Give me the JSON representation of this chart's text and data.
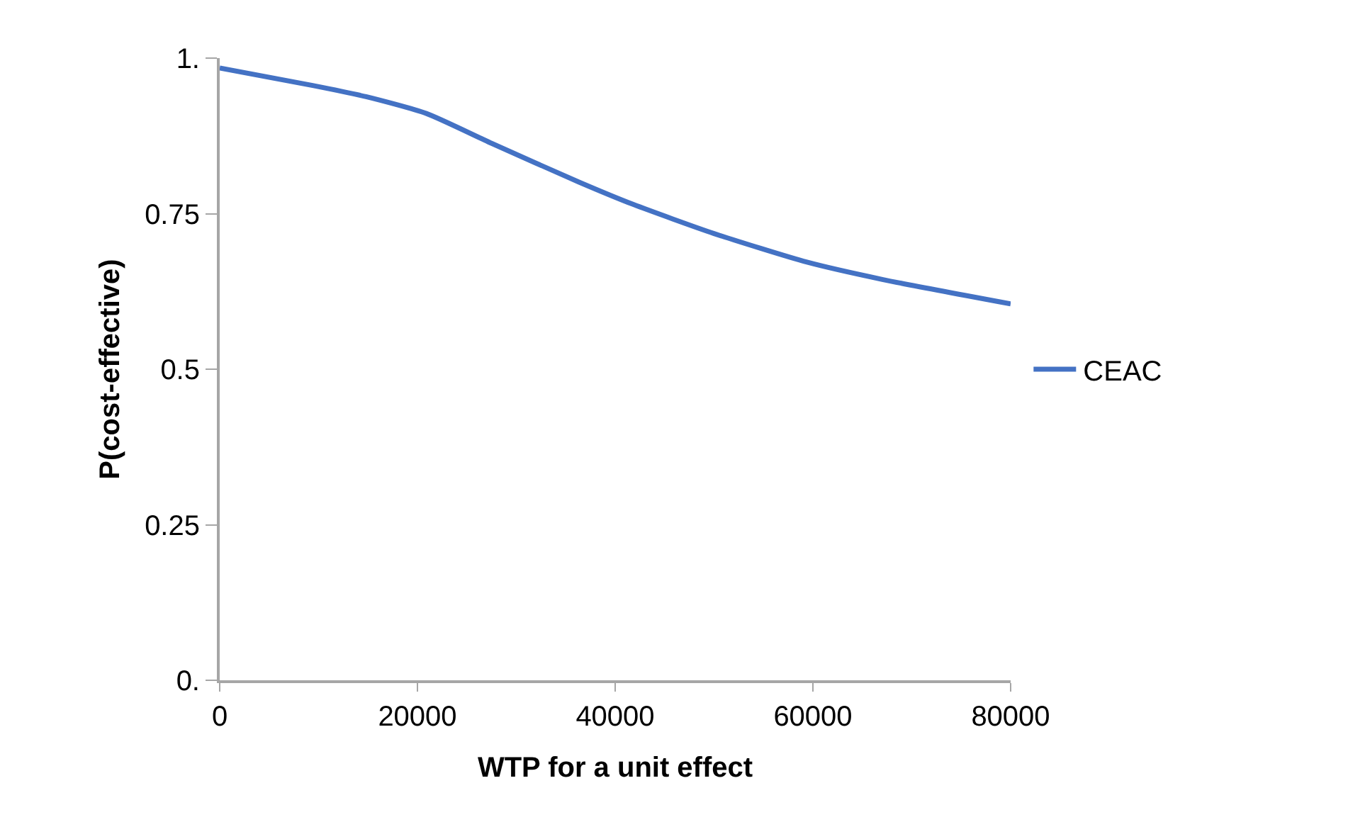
{
  "chart_data": {
    "type": "line",
    "xlabel": "WTP for a unit effect",
    "ylabel": "P(cost-effective)",
    "x": [
      0,
      9400,
      14800,
      20900,
      27500,
      36300,
      41800,
      50000,
      59400,
      67100,
      80000
    ],
    "series": [
      {
        "name": "CEAC",
        "color": "#4472c4",
        "values": [
          0.984,
          0.956,
          0.938,
          0.911,
          0.863,
          0.801,
          0.765,
          0.718,
          0.672,
          0.644,
          0.605
        ]
      }
    ],
    "xlim": [
      0,
      80000
    ],
    "xticks": [
      0,
      20000,
      40000,
      60000,
      80000
    ],
    "ylim": [
      0,
      1
    ],
    "yticks": [
      {
        "value": 0,
        "label": "0."
      },
      0.25,
      0.5,
      0.75,
      {
        "value": 1,
        "label": "1."
      }
    ],
    "grid": false,
    "legend": "right",
    "marker": "none",
    "line_style": "solid"
  }
}
